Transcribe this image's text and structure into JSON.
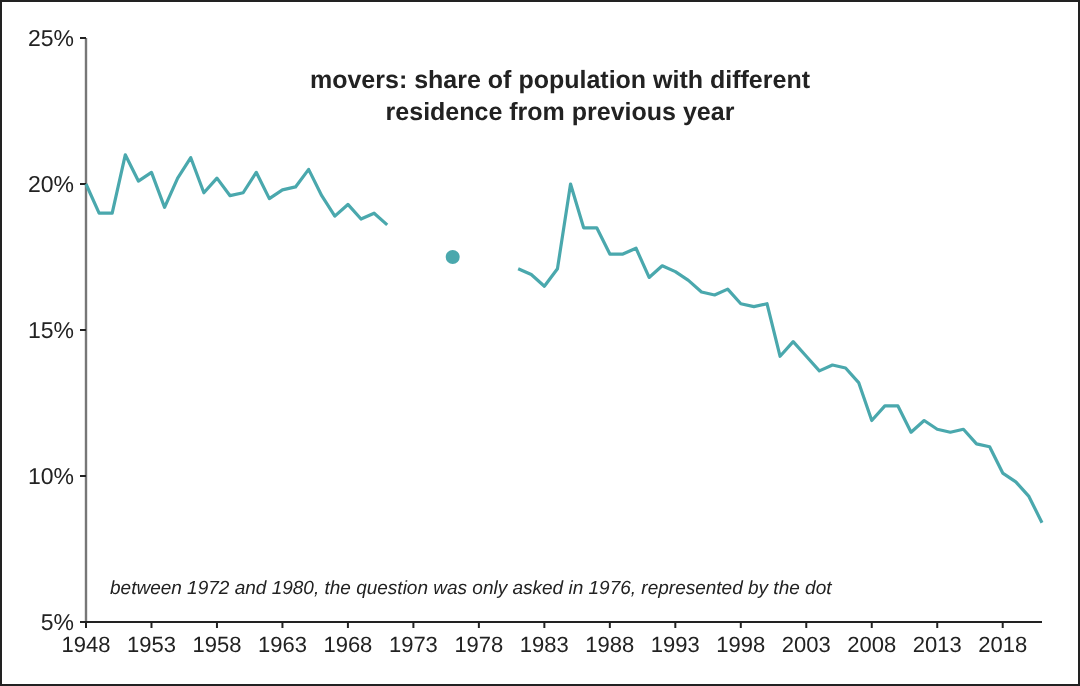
{
  "chart_data": {
    "type": "line",
    "title": "movers: share of population with different residence from previous year",
    "annotations": [
      "between 1972 and 1980, the question was only asked in 1976, represented by the dot"
    ],
    "xlim": [
      1948,
      2021
    ],
    "xticks": [
      1948,
      1953,
      1958,
      1963,
      1968,
      1973,
      1978,
      1983,
      1988,
      1993,
      1998,
      2003,
      2008,
      2013,
      2018
    ],
    "ylim": [
      5,
      25
    ],
    "yticks": [
      {
        "value": 5,
        "label": "5%"
      },
      {
        "value": 10,
        "label": "10%"
      },
      {
        "value": 15,
        "label": "15%"
      },
      {
        "value": 20,
        "label": "20%"
      },
      {
        "value": 25,
        "label": "25%"
      }
    ],
    "grid": false,
    "series": [
      {
        "color": "#4aa8ad",
        "x": [
          1948,
          1949,
          1950,
          1951,
          1952,
          1953,
          1954,
          1955,
          1956,
          1957,
          1958,
          1959,
          1960,
          1961,
          1962,
          1963,
          1964,
          1965,
          1966,
          1967,
          1968,
          1969,
          1970,
          1971,
          1972,
          1981,
          1982,
          1983,
          1984,
          1985,
          1986,
          1987,
          1988,
          1989,
          1990,
          1991,
          1992,
          1993,
          1994,
          1995,
          1996,
          1997,
          1998,
          1999,
          2000,
          2001,
          2002,
          2003,
          2004,
          2005,
          2006,
          2007,
          2008,
          2009,
          2010,
          2011,
          2012,
          2013,
          2014,
          2015,
          2016,
          2017,
          2018,
          2019,
          2020,
          2021
        ],
        "values": [
          20.0,
          19.0,
          19.0,
          21.0,
          20.1,
          20.4,
          19.2,
          20.2,
          20.9,
          19.7,
          20.2,
          19.6,
          19.7,
          20.4,
          19.5,
          19.8,
          19.9,
          20.5,
          19.6,
          18.9,
          19.3,
          18.8,
          19.0,
          18.6,
          null,
          17.1,
          16.9,
          16.5,
          17.1,
          20.0,
          18.5,
          18.5,
          17.6,
          17.6,
          17.8,
          16.8,
          17.2,
          17.0,
          16.7,
          16.3,
          16.2,
          16.4,
          15.9,
          15.8,
          15.9,
          14.1,
          14.6,
          14.1,
          13.6,
          13.8,
          13.7,
          13.2,
          11.9,
          12.4,
          12.4,
          11.5,
          11.9,
          11.6,
          11.5,
          11.6,
          11.1,
          11.0,
          10.1,
          9.8,
          9.3,
          8.4
        ]
      },
      {
        "type": "scatter",
        "marker": "circle",
        "color": "#4aa8ad",
        "x": [
          1976
        ],
        "values": [
          17.5
        ]
      }
    ]
  }
}
